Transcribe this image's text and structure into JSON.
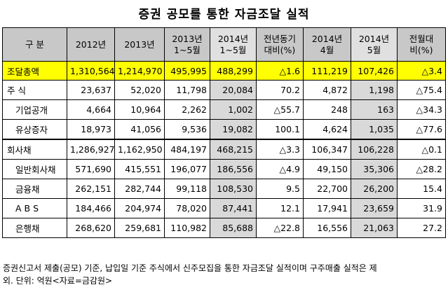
{
  "title": "증권 공모를 통한 자금조달 실적",
  "headers": [
    {
      "lines": [
        "구 분"
      ]
    },
    {
      "lines": [
        "2012년"
      ]
    },
    {
      "lines": [
        "2013년"
      ]
    },
    {
      "lines": [
        "2013년",
        "1~5월"
      ]
    },
    {
      "lines": [
        "2014년",
        "1~5월"
      ]
    },
    {
      "lines": [
        "전년동기",
        "대비(%)"
      ]
    },
    {
      "lines": [
        "2014년",
        "4월"
      ]
    },
    {
      "lines": [
        "2014년",
        "5월"
      ]
    },
    {
      "lines": [
        "전월대",
        "비(%)"
      ]
    }
  ],
  "rows": [
    {
      "label": "조달총액",
      "values": [
        "1,310,564",
        "1,214,970",
        "495,995",
        "488,299",
        "△1.6",
        "111,219",
        "107,426",
        "△3.4"
      ]
    },
    {
      "label": "주 식",
      "values": [
        "23,637",
        "52,020",
        "11,798",
        "20,084",
        "70.2",
        "4,872",
        "1,198",
        "△75.4"
      ]
    },
    {
      "label": "기업공개",
      "values": [
        "4,664",
        "10,964",
        "2,262",
        "1,002",
        "△55.7",
        "248",
        "163",
        "△34.3"
      ]
    },
    {
      "label": "유상증자",
      "values": [
        "18,973",
        "41,056",
        "9,536",
        "19,082",
        "100.1",
        "4,624",
        "1,035",
        "△77.6"
      ]
    },
    {
      "label": "회사채",
      "values": [
        "1,286,927",
        "1,162,950",
        "484,197",
        "468,215",
        "△3.3",
        "106,347",
        "106,228",
        "△0.1"
      ]
    },
    {
      "label": "일반회사채",
      "values": [
        "571,690",
        "415,551",
        "196,077",
        "186,556",
        "△4.9",
        "49,150",
        "35,306",
        "△28.2"
      ]
    },
    {
      "label": "금융채",
      "values": [
        "262,151",
        "282,744",
        "99,118",
        "108,530",
        "9.5",
        "22,700",
        "26,200",
        "15.4"
      ]
    },
    {
      "label": "A B S",
      "values": [
        "184,466",
        "204,974",
        "78,020",
        "87,441",
        "12.1",
        "17,941",
        "23,659",
        "31.9"
      ]
    },
    {
      "label": "은행채",
      "values": [
        "268,620",
        "259,681",
        "110,982",
        "85,688",
        "△22.8",
        "16,556",
        "21,063",
        "27.2"
      ]
    }
  ],
  "note": {
    "line1": "증권신고서 제출(공모) 기준, 납입일 기준  주식에서 신주모집을 통한 자금조달 실적이며 구주매출 실적은 제",
    "line2": "외. 단위: 억원<자료=금감원>"
  },
  "colors": {
    "total_row": "#ffff00",
    "header": "#c8c8c8",
    "highlight": "#d9d9d9"
  }
}
